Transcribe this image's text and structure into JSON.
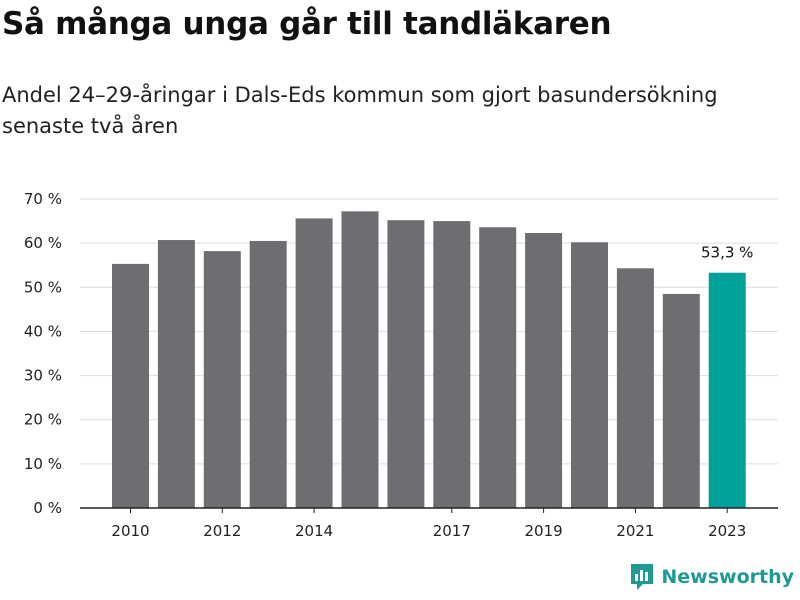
{
  "header": {
    "title": "Så många unga går till tandläkaren",
    "subtitle": "Andel 24–29-åringar i Dals-Eds kommun som gjort basundersökning senaste två åren"
  },
  "brand": {
    "name": "Newsworthy",
    "icon": "newsworthy-logo-icon",
    "color": "#1f9a93"
  },
  "colors": {
    "bar": "#6e6d72",
    "highlight": "#00a19a",
    "grid": "#dddddd",
    "axis": "#222222"
  },
  "chart_data": {
    "type": "bar",
    "categories": [
      "2010",
      "2011",
      "2012",
      "2013",
      "2014",
      "2015",
      "2016",
      "2017",
      "2018",
      "2019",
      "2020",
      "2021",
      "2022",
      "2023"
    ],
    "values": [
      55.3,
      60.7,
      58.2,
      60.5,
      65.6,
      67.2,
      65.2,
      65.0,
      63.6,
      62.3,
      60.2,
      54.3,
      48.5,
      53.3
    ],
    "x_tick_labels": [
      "2010",
      "2012",
      "2014",
      "2017",
      "2019",
      "2021",
      "2023"
    ],
    "y_ticks": [
      0,
      10,
      20,
      30,
      40,
      50,
      60,
      70
    ],
    "y_tick_labels": [
      "0 %",
      "10 %",
      "20 %",
      "30 %",
      "40 %",
      "50 %",
      "60 %",
      "70 %"
    ],
    "ylim": [
      0,
      70
    ],
    "grid": true,
    "highlight_category": "2023",
    "annotation": "53,3 %",
    "xlabel": "",
    "ylabel": ""
  }
}
